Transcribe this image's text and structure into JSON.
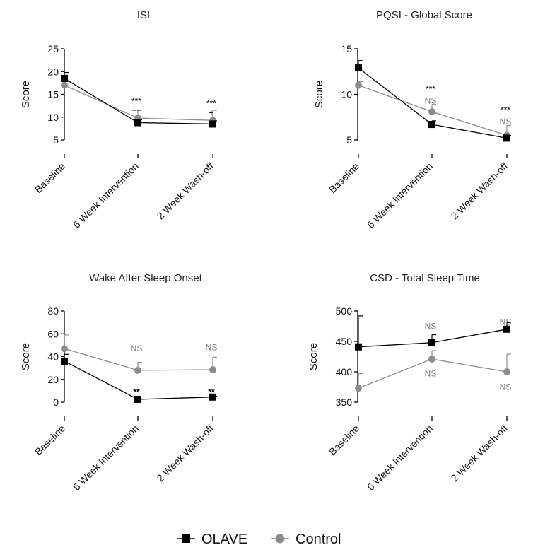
{
  "colors": {
    "olave": "#000000",
    "control": "#8c8c8c"
  },
  "legend": {
    "items": [
      {
        "label": "OLAVE",
        "marker": "square",
        "color": "#000000"
      },
      {
        "label": "Control",
        "marker": "circle",
        "color": "#8c8c8c"
      }
    ]
  },
  "chart_data": [
    {
      "type": "line",
      "title": "ISI",
      "ylabel": "Score",
      "categories": [
        "Baseline",
        "6 Week Intervention",
        "2 Week Wash-off"
      ],
      "ylim": [
        5,
        25
      ],
      "yticks": [
        5,
        10,
        15,
        20,
        25
      ],
      "series": [
        {
          "name": "OLAVE",
          "marker": "square",
          "values": [
            18.5,
            8.8,
            8.5
          ],
          "err": [
            1.3,
            0.6,
            0.7
          ]
        },
        {
          "name": "Control",
          "marker": "circle",
          "values": [
            17.0,
            9.8,
            9.3
          ],
          "err": [
            0.8,
            1.8,
            2.2
          ]
        }
      ],
      "annotations": [
        {
          "category": 1,
          "y": 13.5,
          "text": "***",
          "color": "#000000"
        },
        {
          "category": 1,
          "y": 11.5,
          "text": "++",
          "color": "#000000"
        },
        {
          "category": 2,
          "y": 13.0,
          "text": "***",
          "color": "#000000"
        },
        {
          "category": 2,
          "y": 11.0,
          "text": "+",
          "color": "#000000"
        }
      ]
    },
    {
      "type": "line",
      "title": "PQSI - Global Score",
      "ylabel": "Score",
      "categories": [
        "Baseline",
        "6 Week Intervention",
        "2 Week Wash-off"
      ],
      "ylim": [
        5,
        15
      ],
      "yticks": [
        5,
        10,
        15
      ],
      "series": [
        {
          "name": "OLAVE",
          "marker": "square",
          "values": [
            12.9,
            6.7,
            5.2
          ],
          "err": [
            0.8,
            0.4,
            0.3
          ]
        },
        {
          "name": "Control",
          "marker": "circle",
          "values": [
            11.0,
            8.1,
            5.5
          ],
          "err": [
            0.4,
            0.8,
            1.1
          ]
        }
      ],
      "annotations": [
        {
          "category": 1,
          "y": 10.6,
          "text": "***",
          "color": "#000000"
        },
        {
          "category": 1,
          "y": 9.3,
          "text": "NS",
          "color": "#777777"
        },
        {
          "category": 2,
          "y": 8.3,
          "text": "***",
          "color": "#000000"
        },
        {
          "category": 2,
          "y": 7.0,
          "text": "NS",
          "color": "#777777"
        }
      ]
    },
    {
      "type": "line",
      "title": "Wake After Sleep Onset",
      "ylabel": "Score",
      "categories": [
        "Baseline",
        "6 Week Intervention",
        "2 Week Wash-off"
      ],
      "ylim": [
        0,
        80
      ],
      "yticks": [
        0,
        20,
        40,
        60,
        80
      ],
      "series": [
        {
          "name": "OLAVE",
          "marker": "square",
          "values": [
            36,
            2.5,
            4.5
          ],
          "err": [
            6,
            0.5,
            0.8
          ]
        },
        {
          "name": "Control",
          "marker": "circle",
          "values": [
            47,
            28,
            28.5
          ],
          "err": [
            12,
            7,
            11
          ]
        }
      ],
      "annotations": [
        {
          "category": 1,
          "y": 47,
          "text": "NS",
          "color": "#777777"
        },
        {
          "category": 1,
          "y": 9,
          "text": "**",
          "color": "#000000"
        },
        {
          "category": 2,
          "y": 48,
          "text": "NS",
          "color": "#777777"
        },
        {
          "category": 2,
          "y": 9,
          "text": "**",
          "color": "#000000"
        }
      ]
    },
    {
      "type": "line",
      "title": "CSD - Total Sleep Time",
      "ylabel": "Score",
      "categories": [
        "Baseline",
        "6 Week Intervention",
        "2 Week Wash-off"
      ],
      "ylim": [
        350,
        500
      ],
      "yticks": [
        350,
        400,
        450,
        500
      ],
      "series": [
        {
          "name": "OLAVE",
          "marker": "square",
          "values": [
            441,
            448,
            470
          ],
          "err": [
            51,
            13,
            11
          ]
        },
        {
          "name": "Control",
          "marker": "circle",
          "values": [
            373,
            421,
            400
          ],
          "err": [
            24,
            14,
            29
          ]
        }
      ],
      "annotations": [
        {
          "category": 1,
          "y": 475,
          "text": "NS",
          "color": "#777777"
        },
        {
          "category": 1,
          "y": 397,
          "text": "NS",
          "color": "#777777"
        },
        {
          "category": 2,
          "y": 482,
          "text": "NS",
          "color": "#777777"
        },
        {
          "category": 2,
          "y": 375,
          "text": "NS",
          "color": "#777777"
        }
      ]
    }
  ]
}
